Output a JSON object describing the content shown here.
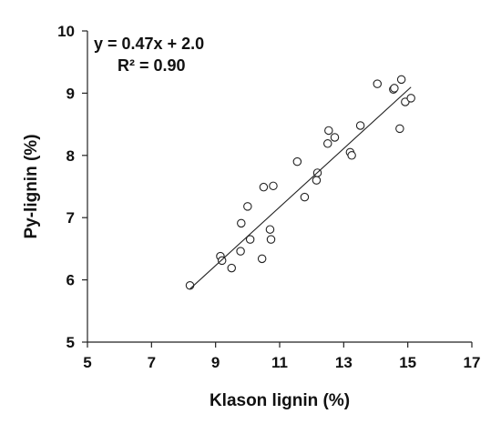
{
  "chart_data": {
    "type": "scatter",
    "title": "",
    "xlabel": "Klason lignin (%)",
    "ylabel": "Py-lignin (%)",
    "xlim": [
      5,
      17
    ],
    "ylim": [
      5,
      10
    ],
    "xticks": [
      5,
      7,
      9,
      11,
      13,
      15,
      17
    ],
    "yticks": [
      5,
      6,
      7,
      8,
      9,
      10
    ],
    "grid": false,
    "legend": "none",
    "annotations": {
      "equation": "y = 0.47x + 2.0",
      "r_squared": "R² = 0.90"
    },
    "trendline": {
      "slope": 0.47,
      "intercept": 2.0,
      "x_range": [
        8.2,
        15.1
      ]
    },
    "points": [
      {
        "x": 8.2,
        "y": 5.91
      },
      {
        "x": 9.15,
        "y": 6.38
      },
      {
        "x": 9.2,
        "y": 6.31
      },
      {
        "x": 9.5,
        "y": 6.19
      },
      {
        "x": 9.78,
        "y": 6.46
      },
      {
        "x": 9.8,
        "y": 6.91
      },
      {
        "x": 10.0,
        "y": 7.18
      },
      {
        "x": 10.08,
        "y": 6.65
      },
      {
        "x": 10.45,
        "y": 6.34
      },
      {
        "x": 10.5,
        "y": 7.49
      },
      {
        "x": 10.7,
        "y": 6.81
      },
      {
        "x": 10.73,
        "y": 6.65
      },
      {
        "x": 10.8,
        "y": 7.51
      },
      {
        "x": 11.55,
        "y": 7.9
      },
      {
        "x": 11.78,
        "y": 7.33
      },
      {
        "x": 12.15,
        "y": 7.6
      },
      {
        "x": 12.18,
        "y": 7.72
      },
      {
        "x": 12.5,
        "y": 8.19
      },
      {
        "x": 12.53,
        "y": 8.4
      },
      {
        "x": 12.72,
        "y": 8.29
      },
      {
        "x": 13.2,
        "y": 8.05
      },
      {
        "x": 13.25,
        "y": 8.0
      },
      {
        "x": 13.52,
        "y": 8.48
      },
      {
        "x": 14.05,
        "y": 9.15
      },
      {
        "x": 14.55,
        "y": 9.06
      },
      {
        "x": 14.58,
        "y": 9.08
      },
      {
        "x": 14.75,
        "y": 8.43
      },
      {
        "x": 14.8,
        "y": 9.22
      },
      {
        "x": 14.92,
        "y": 8.86
      },
      {
        "x": 15.1,
        "y": 8.92
      }
    ]
  }
}
